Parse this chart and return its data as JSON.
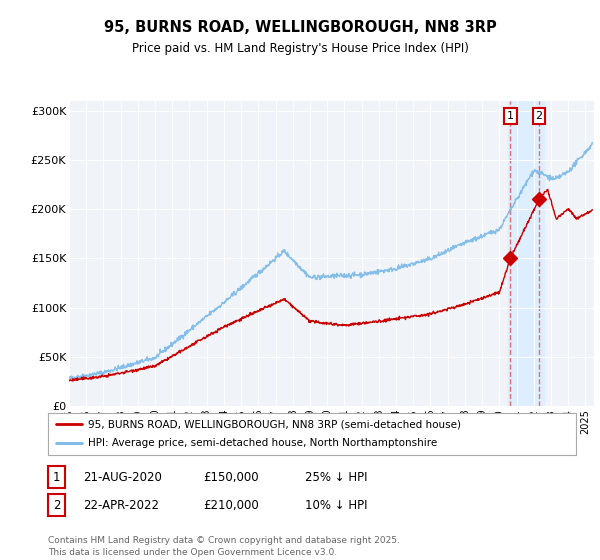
{
  "title": "95, BURNS ROAD, WELLINGBOROUGH, NN8 3RP",
  "subtitle": "Price paid vs. HM Land Registry's House Price Index (HPI)",
  "ylabel_ticks": [
    "£0",
    "£50K",
    "£100K",
    "£150K",
    "£200K",
    "£250K",
    "£300K"
  ],
  "ytick_values": [
    0,
    50000,
    100000,
    150000,
    200000,
    250000,
    300000
  ],
  "ylim": [
    0,
    310000
  ],
  "xlim_start": 1995.0,
  "xlim_end": 2025.5,
  "hpi_color": "#7ab8e8",
  "price_color": "#cc0000",
  "vline_color": "#e87070",
  "marker1_date": 2020.64,
  "marker1_price": 150000,
  "marker2_date": 2022.31,
  "marker2_price": 210000,
  "legend_line1": "95, BURNS ROAD, WELLINGBOROUGH, NN8 3RP (semi-detached house)",
  "legend_line2": "HPI: Average price, semi-detached house, North Northamptonshire",
  "annotation1_date": "21-AUG-2020",
  "annotation1_price": "£150,000",
  "annotation1_hpi": "25% ↓ HPI",
  "annotation2_date": "22-APR-2022",
  "annotation2_price": "£210,000",
  "annotation2_hpi": "10% ↓ HPI",
  "footnote": "Contains HM Land Registry data © Crown copyright and database right 2025.\nThis data is licensed under the Open Government Licence v3.0.",
  "background_color": "#ffffff",
  "plot_bg_color": "#f0f4f8",
  "shaded_region_start": 2020.5,
  "shaded_region_end": 2022.6,
  "shaded_region_color": "#ddeeff",
  "box1_edge": "#cc0000",
  "box2_edge": "#cc0000"
}
